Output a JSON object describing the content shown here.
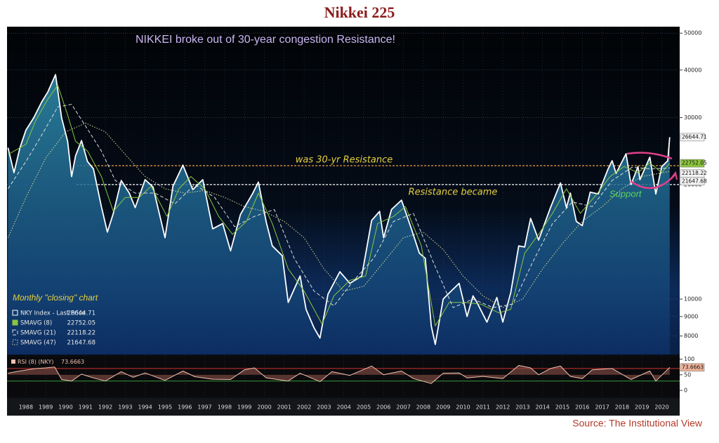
{
  "chart_data": [
    {
      "type": "line",
      "title": "Nikkei 225",
      "source": "Source: The Institutional View",
      "annotations": {
        "headline": "NIKKEI broke out of 30-year congestion Resistance!",
        "chart_note": "Monthly \"closing\" chart",
        "support": "Support"
      },
      "log_scale": true,
      "grid": true,
      "xlim": [
        1987.55,
        2021.4
      ],
      "ylim": [
        7150,
        52000
      ],
      "yticks": [
        8000,
        9000,
        10000,
        20000,
        30000,
        40000,
        50000
      ],
      "xticks": [
        {
          "value": 1988.5,
          "label": "1988"
        },
        {
          "value": 1989.5,
          "label": "1989"
        },
        {
          "value": 1990.5,
          "label": "1990"
        },
        {
          "value": 1991.5,
          "label": "1991"
        },
        {
          "value": 1992.5,
          "label": "1992"
        },
        {
          "value": 1993.5,
          "label": "1993"
        },
        {
          "value": 1994.5,
          "label": "1994"
        },
        {
          "value": 1995.5,
          "label": "1995"
        },
        {
          "value": 1996.5,
          "label": "1996"
        },
        {
          "value": 1997.5,
          "label": "1997"
        },
        {
          "value": 1998.5,
          "label": "1998"
        },
        {
          "value": 1999.5,
          "label": "1999"
        },
        {
          "value": 2000.5,
          "label": "2000"
        },
        {
          "value": 2001.5,
          "label": "2001"
        },
        {
          "value": 2002.5,
          "label": "2002"
        },
        {
          "value": 2003.5,
          "label": "2003"
        },
        {
          "value": 2004.5,
          "label": "2004"
        },
        {
          "value": 2005.5,
          "label": "2005"
        },
        {
          "value": 2006.5,
          "label": "2006"
        },
        {
          "value": 2007.5,
          "label": "2007"
        },
        {
          "value": 2008.5,
          "label": "2008"
        },
        {
          "value": 2009.5,
          "label": "2009"
        },
        {
          "value": 2010.5,
          "label": "2010"
        },
        {
          "value": 2011.5,
          "label": "2011"
        },
        {
          "value": 2012.5,
          "label": "2012"
        },
        {
          "value": 2013.5,
          "label": "2013"
        },
        {
          "value": 2014.5,
          "label": "2014"
        },
        {
          "value": 2015.5,
          "label": "2015"
        },
        {
          "value": 2016.5,
          "label": "2016"
        },
        {
          "value": 2017.5,
          "label": "2017"
        },
        {
          "value": 2018.5,
          "label": "2018"
        },
        {
          "value": 2019.5,
          "label": "2019"
        },
        {
          "value": 2020.5,
          "label": "2020"
        }
      ],
      "reference_lines": [
        {
          "value": 22420,
          "label": "was 30-yr Resistance",
          "color": "#e8a040"
        },
        {
          "value": 20000,
          "label": "Resistance became",
          "color": "#ffffff"
        }
      ],
      "series": [
        {
          "name": "NKY Index - Last Price",
          "color": "#ffffff",
          "style": "solid",
          "x": [
            1987.6,
            1987.9,
            1988.2,
            1988.5,
            1988.9,
            1989.3,
            1989.6,
            1989.99,
            1990.3,
            1990.6,
            1990.8,
            1991.0,
            1991.3,
            1991.6,
            1991.9,
            1992.3,
            1992.6,
            1992.9,
            1993.3,
            1993.7,
            1994.0,
            1994.5,
            1994.9,
            1995.5,
            1995.9,
            1996.4,
            1996.9,
            1997.4,
            1997.9,
            1998.4,
            1998.8,
            1999.3,
            1999.9,
            2000.2,
            2000.6,
            2000.9,
            2001.4,
            2001.7,
            2002.3,
            2002.6,
            2003.0,
            2003.3,
            2003.7,
            2004.3,
            2004.8,
            2005.4,
            2005.9,
            2006.3,
            2006.5,
            2006.9,
            2007.4,
            2007.9,
            2008.3,
            2008.6,
            2008.9,
            2009.1,
            2009.5,
            2009.9,
            2010.3,
            2010.7,
            2011.0,
            2011.2,
            2011.7,
            2012.2,
            2012.5,
            2012.9,
            2013.3,
            2013.6,
            2013.9,
            2014.3,
            2014.9,
            2015.4,
            2015.7,
            2015.9,
            2016.2,
            2016.5,
            2016.9,
            2017.3,
            2017.8,
            2018.0,
            2018.2,
            2018.7,
            2018.95,
            2019.3,
            2019.4,
            2019.9,
            2020.2,
            2020.5,
            2020.8,
            2020.9
          ],
          "values": [
            25000,
            21500,
            25000,
            27800,
            30000,
            33000,
            35000,
            38900,
            29900,
            26000,
            21000,
            23800,
            26100,
            23000,
            22000,
            17500,
            15000,
            16800,
            20500,
            19000,
            17400,
            20600,
            19700,
            14500,
            19800,
            22500,
            19400,
            20600,
            15300,
            15800,
            13400,
            16700,
            18900,
            20300,
            15900,
            13800,
            13000,
            9800,
            11500,
            9400,
            8400,
            7900,
            10300,
            11800,
            11000,
            11500,
            16100,
            17000,
            14500,
            17200,
            18200,
            15300,
            13200,
            12800,
            8500,
            7600,
            10000,
            10500,
            11000,
            9000,
            10200,
            9800,
            8700,
            10100,
            8700,
            10400,
            13800,
            13700,
            16300,
            14300,
            17400,
            20200,
            17400,
            19000,
            16000,
            15600,
            19100,
            18900,
            22000,
            23100,
            21400,
            24100,
            20000,
            22300,
            20600,
            23600,
            18900,
            22300,
            23100,
            26644.71
          ]
        },
        {
          "name": "SMAVG (8)",
          "color": "#8cc63f",
          "style": "solid",
          "x": [
            1987.6,
            1988.5,
            1989.0,
            1989.6,
            1990.1,
            1990.6,
            1991.0,
            1991.6,
            1992.3,
            1992.9,
            1993.5,
            1994.2,
            1994.8,
            1995.6,
            1996.2,
            1996.8,
            1997.5,
            1998.2,
            1998.9,
            1999.6,
            2000.2,
            2000.9,
            2001.7,
            2002.5,
            2003.4,
            2004.0,
            2004.8,
            2005.6,
            2006.2,
            2007.0,
            2007.6,
            2008.4,
            2009.1,
            2009.8,
            2010.6,
            2011.4,
            2012.3,
            2012.9,
            2013.6,
            2014.3,
            2015.0,
            2015.7,
            2016.4,
            2017.2,
            2017.9,
            2018.6,
            2019.3,
            2019.9,
            2020.5,
            2020.9
          ],
          "values": [
            24000,
            25500,
            29500,
            33500,
            36500,
            30500,
            26000,
            24500,
            21000,
            17000,
            18500,
            18500,
            19800,
            16500,
            19500,
            21000,
            19500,
            16500,
            14800,
            16000,
            19000,
            15800,
            12000,
            10500,
            8600,
            10200,
            11200,
            11500,
            15800,
            16500,
            17500,
            13800,
            8500,
            9800,
            9800,
            9700,
            9200,
            9400,
            13200,
            14800,
            16800,
            19500,
            16800,
            18800,
            21000,
            22300,
            21500,
            22800,
            21500,
            22752.05
          ]
        },
        {
          "name": "SMAVG (21)",
          "color": "#dddddd",
          "style": "dashed",
          "x": [
            1987.6,
            1988.5,
            1989.3,
            1990.1,
            1990.8,
            1991.5,
            1992.3,
            1993.0,
            1994.0,
            1995.0,
            1996.0,
            1997.0,
            1998.0,
            1999.0,
            2000.0,
            2001.0,
            2002.0,
            2003.0,
            2004.0,
            2005.0,
            2006.0,
            2007.0,
            2008.0,
            2009.0,
            2010.0,
            2011.0,
            2012.0,
            2013.0,
            2014.0,
            2015.0,
            2016.0,
            2017.0,
            2018.0,
            2019.0,
            2020.0,
            2020.9
          ],
          "values": [
            19500,
            23000,
            27000,
            32000,
            32500,
            28500,
            24500,
            20500,
            19000,
            19000,
            17800,
            20000,
            18500,
            15500,
            16500,
            17200,
            12800,
            10500,
            9600,
            11200,
            12800,
            16000,
            16800,
            12500,
            9500,
            10000,
            9500,
            9700,
            12500,
            15800,
            18000,
            17500,
            20500,
            22200,
            22000,
            22118.22
          ]
        },
        {
          "name": "SMAVG (47)",
          "color": "#d8d890",
          "style": "dotted",
          "x": [
            1987.6,
            1988.5,
            1989.5,
            1990.5,
            1991.5,
            1992.5,
            1993.5,
            1994.5,
            1995.5,
            1996.5,
            1997.5,
            1998.5,
            1999.5,
            2000.5,
            2001.5,
            2002.5,
            2003.5,
            2004.5,
            2005.5,
            2006.5,
            2007.5,
            2008.5,
            2009.5,
            2010.5,
            2011.5,
            2012.5,
            2013.5,
            2014.5,
            2015.5,
            2016.5,
            2017.5,
            2018.5,
            2019.5,
            2020.9
          ],
          "values": [
            14500,
            18500,
            23500,
            27500,
            29000,
            27500,
            24000,
            21000,
            19500,
            19000,
            19300,
            18500,
            17500,
            17000,
            16000,
            14500,
            12000,
            10500,
            10800,
            12500,
            14500,
            15000,
            13500,
            11500,
            10200,
            9500,
            10000,
            12000,
            14000,
            16000,
            17500,
            19500,
            21000,
            21647.68
          ]
        }
      ]
    },
    {
      "type": "line",
      "xlim": [
        1987.55,
        2021.4
      ],
      "ylim": [
        -20,
        108
      ],
      "yticks": [
        0,
        50,
        100
      ],
      "reference_lines": [
        {
          "value": 70,
          "color": "#d03030"
        },
        {
          "value": 30,
          "color": "#3a9a3a"
        }
      ],
      "series": [
        {
          "name": "RSI (8) (NKY)",
          "color": "#f0c0b0",
          "style": "solid",
          "x": [
            1987.6,
            1988.0,
            1988.5,
            1989.0,
            1989.5,
            1989.95,
            1990.3,
            1990.8,
            1991.3,
            1991.9,
            1992.5,
            1993.3,
            1993.9,
            1994.5,
            1995.5,
            1996.4,
            1997.0,
            1997.9,
            1998.8,
            1999.5,
            2000.0,
            2000.6,
            2001.7,
            2002.3,
            2003.3,
            2003.9,
            2004.8,
            2005.9,
            2006.5,
            2007.4,
            2008.0,
            2008.9,
            2009.5,
            2010.3,
            2010.7,
            2011.5,
            2012.5,
            2013.3,
            2013.9,
            2014.3,
            2014.9,
            2015.4,
            2015.9,
            2016.5,
            2017.0,
            2018.0,
            2018.95,
            2019.9,
            2020.2,
            2020.9
          ],
          "values": [
            55,
            60,
            65,
            70,
            72,
            75,
            35,
            30,
            52,
            40,
            30,
            60,
            42,
            56,
            32,
            62,
            44,
            36,
            35,
            66,
            72,
            40,
            30,
            55,
            28,
            60,
            48,
            78,
            50,
            62,
            38,
            22,
            55,
            56,
            40,
            45,
            38,
            80,
            72,
            50,
            70,
            78,
            45,
            38,
            66,
            70,
            35,
            62,
            30,
            73.6663
          ]
        }
      ]
    }
  ]
}
